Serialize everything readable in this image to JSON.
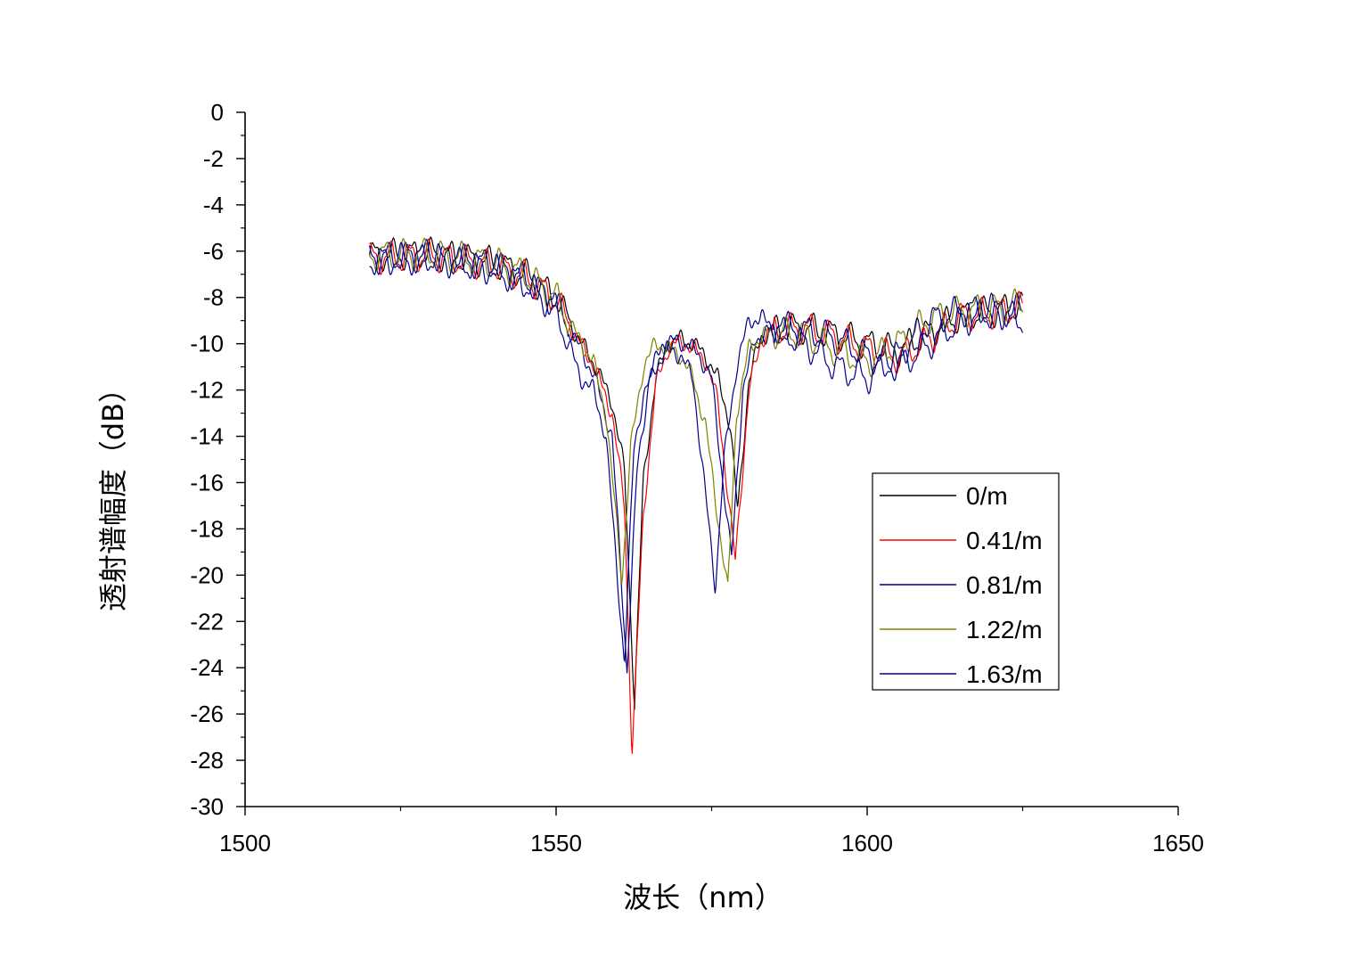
{
  "chart_data": {
    "type": "line",
    "xlabel": "波长（nm）",
    "ylabel": "透射谱幅度（dB）",
    "xlim": [
      1500,
      1650
    ],
    "ylim": [
      -30,
      0
    ],
    "xticks": [
      1500,
      1550,
      1600,
      1650
    ],
    "yticks": [
      0,
      -2,
      -4,
      -6,
      -8,
      -10,
      -12,
      -14,
      -16,
      -18,
      -20,
      -22,
      -24,
      -26,
      -28,
      -30
    ],
    "grid": false,
    "legend_position": "right",
    "series": [
      {
        "name": "0/m",
        "color": "#000000",
        "dips": [
          [
            1562.6,
            -25.6
          ],
          [
            1579.2,
            -17.3
          ]
        ],
        "x": [
          1520,
          1530,
          1540,
          1545,
          1550,
          1553,
          1556,
          1559,
          1561,
          1562.6,
          1564,
          1566,
          1568,
          1570,
          1572,
          1574,
          1576,
          1578,
          1579.2,
          1581,
          1583,
          1585,
          1590,
          1595,
          1600,
          1605,
          1610,
          1615,
          1620,
          1625
        ],
        "y": [
          -6.2,
          -6.1,
          -6.5,
          -7.0,
          -8.0,
          -9.5,
          -10.8,
          -12.5,
          -15.5,
          -25.6,
          -16.0,
          -11.5,
          -10.0,
          -9.8,
          -10.0,
          -10.5,
          -11.5,
          -13.5,
          -17.3,
          -11.5,
          -9.7,
          -9.4,
          -9.3,
          -9.6,
          -10.0,
          -10.3,
          -9.5,
          -8.8,
          -8.6,
          -8.4
        ]
      },
      {
        "name": "0.41/m",
        "color": "#ff0000",
        "dips": [
          [
            1562.2,
            -27.7
          ],
          [
            1578.8,
            -19.4
          ]
        ],
        "x": [
          1520,
          1530,
          1540,
          1545,
          1550,
          1553,
          1556,
          1559,
          1561,
          1562.2,
          1564,
          1566,
          1568,
          1570,
          1572,
          1574,
          1576,
          1578.8,
          1581,
          1583,
          1585,
          1590,
          1595,
          1600,
          1605,
          1610,
          1615,
          1620,
          1625
        ],
        "y": [
          -6.3,
          -6.2,
          -6.6,
          -7.1,
          -8.1,
          -9.6,
          -10.9,
          -13.0,
          -17.0,
          -27.7,
          -17.5,
          -11.8,
          -10.2,
          -9.9,
          -10.2,
          -10.7,
          -12.5,
          -19.4,
          -12.0,
          -9.8,
          -9.4,
          -9.3,
          -9.7,
          -10.2,
          -10.6,
          -9.8,
          -8.8,
          -8.7,
          -8.4
        ]
      },
      {
        "name": "0.81/m",
        "color": "#00008b",
        "dips": [
          [
            1561.4,
            -24.1
          ],
          [
            1578.2,
            -19.3
          ]
        ],
        "x": [
          1520,
          1530,
          1540,
          1545,
          1550,
          1553,
          1556,
          1559,
          1561.4,
          1563,
          1565,
          1567,
          1569,
          1571,
          1573,
          1575,
          1578.2,
          1580,
          1582,
          1584,
          1586,
          1590,
          1595,
          1600,
          1605,
          1610,
          1615,
          1620,
          1625
        ],
        "y": [
          -6.3,
          -6.2,
          -6.6,
          -7.2,
          -8.3,
          -9.8,
          -11.3,
          -14.0,
          -24.1,
          -15.5,
          -11.5,
          -10.0,
          -9.9,
          -10.0,
          -10.5,
          -11.5,
          -19.3,
          -12.0,
          -9.8,
          -9.5,
          -9.3,
          -9.4,
          -9.8,
          -10.5,
          -11.0,
          -10.0,
          -9.0,
          -8.7,
          -8.5
        ]
      },
      {
        "name": "1.22/m",
        "color": "#808000",
        "dips": [
          [
            1560.6,
            -20.2
          ],
          [
            1577.6,
            -20.7
          ]
        ],
        "x": [
          1520,
          1530,
          1540,
          1545,
          1550,
          1553,
          1556,
          1558,
          1560.6,
          1562,
          1564,
          1566,
          1568,
          1570,
          1572,
          1574,
          1577.6,
          1579,
          1581,
          1583,
          1585,
          1590,
          1595,
          1600,
          1605,
          1610,
          1615,
          1620,
          1625
        ],
        "y": [
          -6.2,
          -6.1,
          -6.5,
          -7.0,
          -8.0,
          -9.5,
          -10.8,
          -13.0,
          -20.2,
          -14.5,
          -11.0,
          -10.0,
          -10.2,
          -10.5,
          -11.5,
          -13.5,
          -20.7,
          -13.0,
          -10.2,
          -9.7,
          -9.5,
          -9.6,
          -10.3,
          -10.8,
          -10.0,
          -8.9,
          -8.6,
          -8.5,
          -8.3
        ]
      },
      {
        "name": "1.63/m",
        "color": "#00008b",
        "dips": [
          [
            1561.0,
            -23.8
          ],
          [
            1575.6,
            -20.5
          ]
        ],
        "x": [
          1520,
          1530,
          1540,
          1545,
          1550,
          1552,
          1554,
          1556,
          1558,
          1561.0,
          1562.5,
          1564,
          1566,
          1568,
          1570,
          1572,
          1575.6,
          1577,
          1579,
          1581,
          1583,
          1585,
          1590,
          1595,
          1600,
          1605,
          1610,
          1615,
          1620,
          1625
        ],
        "y": [
          -6.4,
          -6.3,
          -6.8,
          -7.4,
          -8.5,
          -10.0,
          -11.5,
          -12.0,
          -14.0,
          -23.8,
          -14.5,
          -12.3,
          -11.0,
          -10.2,
          -10.5,
          -11.5,
          -20.5,
          -15.0,
          -11.0,
          -9.0,
          -8.9,
          -9.3,
          -10.0,
          -11.0,
          -11.5,
          -10.5,
          -9.0,
          -8.6,
          -8.5,
          -9.0
        ]
      }
    ]
  }
}
